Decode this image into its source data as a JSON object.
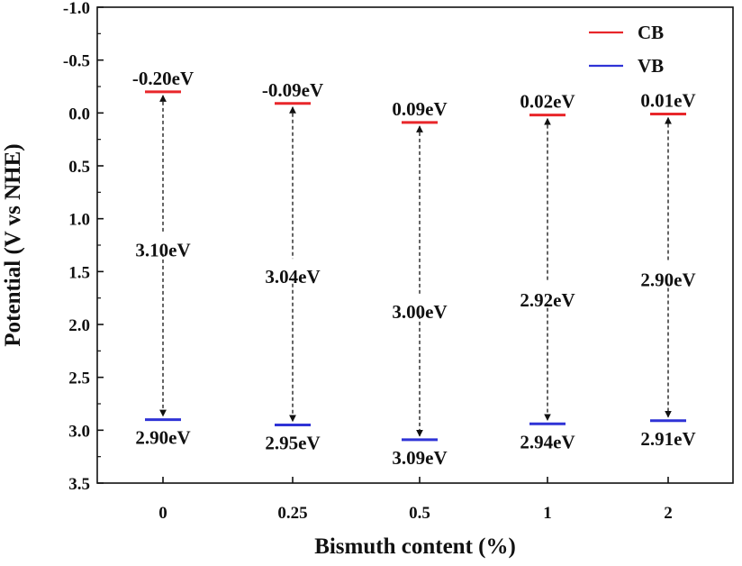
{
  "chart_data": {
    "type": "band-diagram",
    "xlabel": "Bismuth content (%)",
    "ylabel": "Potential (V vs NHE)",
    "ylim": [
      -1.0,
      3.5
    ],
    "y_inverted": true,
    "y_ticks": [
      "-1.0",
      "-0.5",
      "0.0",
      "0.5",
      "1.0",
      "1.5",
      "2.0",
      "2.5",
      "3.0",
      "3.5"
    ],
    "y_tick_values": [
      -1.0,
      -0.5,
      0.0,
      0.5,
      1.0,
      1.5,
      2.0,
      2.5,
      3.0,
      3.5
    ],
    "categories": [
      "0",
      "0.25",
      "0.5",
      "1",
      "2"
    ],
    "series": [
      {
        "name": "CB",
        "color": "#e8262a",
        "values": [
          -0.2,
          -0.09,
          0.09,
          0.02,
          0.01
        ],
        "labels": [
          "-0.20eV",
          "-0.09eV",
          "0.09eV",
          "0.02eV",
          "0.01eV"
        ]
      },
      {
        "name": "VB",
        "color": "#2f33d6",
        "values": [
          2.9,
          2.95,
          3.09,
          2.94,
          2.91
        ],
        "labels": [
          "2.90eV",
          "2.95eV",
          "3.09eV",
          "2.94eV",
          "2.91eV"
        ]
      }
    ],
    "band_gaps": {
      "values": [
        3.1,
        3.04,
        3.0,
        2.92,
        2.9
      ],
      "labels": [
        "3.10eV",
        "3.04eV",
        "3.00eV",
        "2.92eV",
        "2.90eV"
      ]
    },
    "legend": {
      "position": "top-right",
      "entries": [
        "CB",
        "VB"
      ]
    },
    "grid": false
  }
}
